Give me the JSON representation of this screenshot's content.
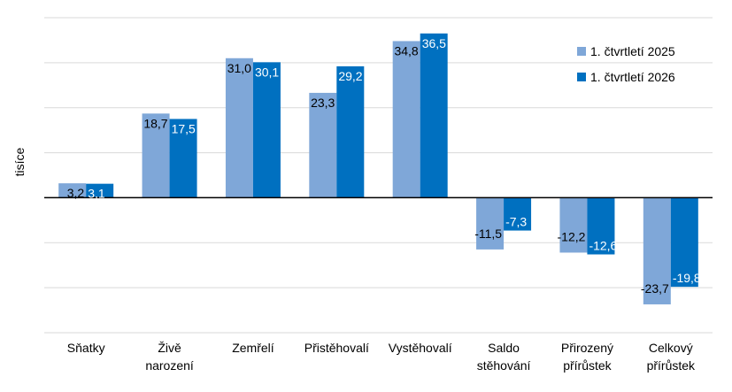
{
  "chart_data": {
    "type": "bar",
    "title": "",
    "xlabel": "",
    "ylabel": "tisíce",
    "ylim": [
      -30,
      40
    ],
    "grid": true,
    "legend_position": "top-right",
    "categories": [
      [
        "Sňatky"
      ],
      [
        "Živě",
        "narození"
      ],
      [
        "Zemřelí"
      ],
      [
        "Přistěhovalí"
      ],
      [
        "Vystěhovalí"
      ],
      [
        "Saldo",
        "stěhování"
      ],
      [
        "Přirozený",
        "přírůstek"
      ],
      [
        "Celkový",
        "přírůstek"
      ]
    ],
    "series": [
      {
        "name": "1. čtvrtletí 2025",
        "color": "#7FA7D8",
        "values": [
          3.2,
          18.7,
          31.0,
          23.3,
          34.8,
          -11.5,
          -12.2,
          -23.7
        ],
        "labels": [
          "3,2",
          "18,7",
          "31,0",
          "23,3",
          "34,8",
          "-11,5",
          "-12,2",
          "-23,7"
        ]
      },
      {
        "name": "1. čtvrtletí 2026",
        "color": "#0070C0",
        "values": [
          3.1,
          17.5,
          30.1,
          29.2,
          36.5,
          -7.3,
          -12.6,
          -19.8
        ],
        "labels": [
          "3,1",
          "17,5",
          "30,1",
          "29,2",
          "36,5",
          "-7,3",
          "-12,6",
          "-19,8"
        ]
      }
    ]
  }
}
